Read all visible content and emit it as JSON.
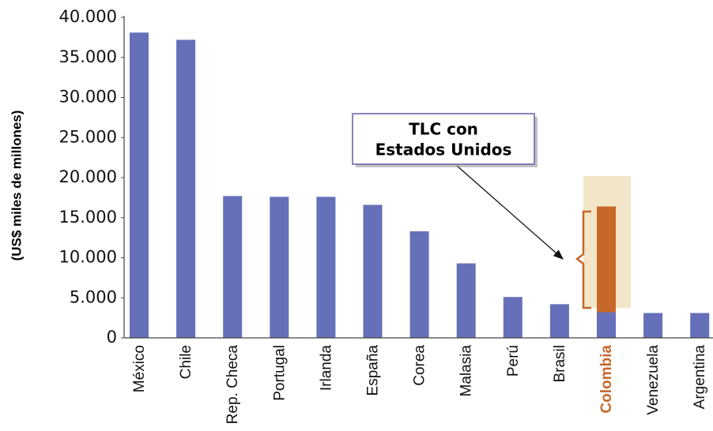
{
  "chart_data": {
    "type": "bar",
    "stacked": true,
    "ylabel": "(US$ miles de millones)",
    "annotation": [
      "TLC con",
      "Estados Unidos"
    ],
    "categories": [
      "México",
      "Chile",
      "Rep. Checa",
      "Portugal",
      "Irlanda",
      "España",
      "Corea",
      "Malasia",
      "Perú",
      "Brasil",
      "Colombia",
      "Venezuela",
      "Argentina"
    ],
    "series": [
      {
        "color": "#6670b8",
        "values": [
          38100,
          37200,
          17700,
          17600,
          17600,
          16600,
          13300,
          9300,
          5100,
          4200,
          3200,
          3100,
          3100
        ]
      },
      {
        "color": "#c8672a",
        "values": [
          null,
          null,
          null,
          null,
          null,
          null,
          null,
          null,
          null,
          null,
          13200,
          null,
          null
        ]
      }
    ],
    "ylim": [
      0,
      40000
    ],
    "yticks": [
      0,
      {
        "value": 5000,
        "label": "5.000"
      },
      {
        "value": 10000,
        "label": "10.000"
      },
      {
        "value": 15000,
        "label": "15.000"
      },
      {
        "value": 20000,
        "label": "20.000"
      },
      {
        "value": 25000,
        "label": "25.000"
      },
      {
        "value": 30000,
        "label": "30.000"
      },
      {
        "value": 35000,
        "label": "35.000"
      },
      {
        "value": 40000,
        "label": "40.000"
      }
    ]
  }
}
